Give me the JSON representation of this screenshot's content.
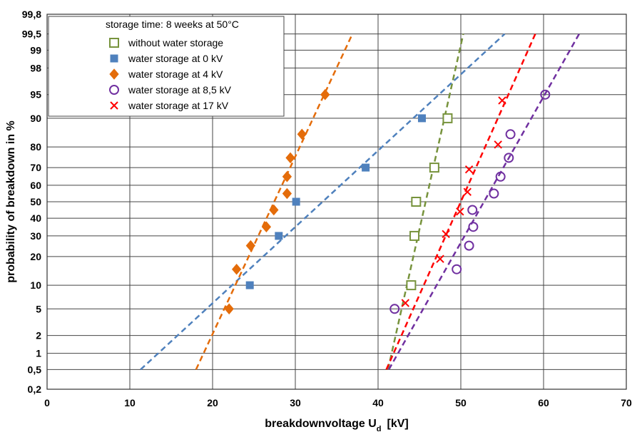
{
  "chart_data": {
    "type": "scatter",
    "title": "",
    "legend_title": "storage time:  8 weeks at 50°C",
    "legend_position": "top-left",
    "grid": true,
    "xlabel": {
      "main": "breakdownvoltage U",
      "sub": "d",
      "unit": "[kV]"
    },
    "ylabel": "probability of breakdown in %",
    "xlim": [
      0,
      70
    ],
    "ylim": [
      0.2,
      99.8
    ],
    "y_scale": "probability",
    "x_ticks": [
      "0",
      "10",
      "20",
      "30",
      "40",
      "50",
      "60",
      "70"
    ],
    "y_ticks": [
      {
        "label": "0,2",
        "value": 0.2
      },
      {
        "label": "0,5",
        "value": 0.5
      },
      {
        "label": "1",
        "value": 1
      },
      {
        "label": "2",
        "value": 2
      },
      {
        "label": "5",
        "value": 5
      },
      {
        "label": "10",
        "value": 10
      },
      {
        "label": "20",
        "value": 20
      },
      {
        "label": "30",
        "value": 30
      },
      {
        "label": "40",
        "value": 40
      },
      {
        "label": "50",
        "value": 50
      },
      {
        "label": "60",
        "value": 60
      },
      {
        "label": "70",
        "value": 70
      },
      {
        "label": "80",
        "value": 80
      },
      {
        "label": "90",
        "value": 90
      },
      {
        "label": "95",
        "value": 95
      },
      {
        "label": "98",
        "value": 98
      },
      {
        "label": "99",
        "value": 99
      },
      {
        "label": "99,5",
        "value": 99.5
      },
      {
        "label": "99,8",
        "value": 99.8
      }
    ],
    "series": [
      {
        "name": "without water storage",
        "marker": "open-square",
        "color": "#77933c",
        "points": [
          [
            44.0,
            10
          ],
          [
            44.4,
            30
          ],
          [
            44.6,
            50
          ],
          [
            46.8,
            70
          ],
          [
            48.4,
            90
          ]
        ],
        "fit_line": [
          [
            41.2,
            0.5
          ],
          [
            50.3,
            99.5
          ]
        ]
      },
      {
        "name": "water storage at 0 kV",
        "marker": "filled-square",
        "color": "#4f81bd",
        "points": [
          [
            24.5,
            10
          ],
          [
            28.0,
            30
          ],
          [
            30.1,
            50
          ],
          [
            38.5,
            70
          ],
          [
            45.3,
            90
          ]
        ],
        "fit_line": [
          [
            11.3,
            0.5
          ],
          [
            55.3,
            99.5
          ]
        ]
      },
      {
        "name": "water storage at 4 kV",
        "marker": "filled-diamond",
        "color": "#e46c0a",
        "points": [
          [
            22.0,
            5
          ],
          [
            22.9,
            15
          ],
          [
            24.6,
            25
          ],
          [
            26.5,
            35
          ],
          [
            27.4,
            45
          ],
          [
            29.0,
            55
          ],
          [
            29.0,
            65
          ],
          [
            29.4,
            75
          ],
          [
            30.8,
            85
          ],
          [
            33.6,
            95
          ]
        ],
        "fit_line": [
          [
            18.0,
            0.5
          ],
          [
            36.9,
            99.5
          ]
        ]
      },
      {
        "name": "water storage at 8,5 kV",
        "marker": "open-circle",
        "color": "#7030a0",
        "points": [
          [
            42.0,
            5
          ],
          [
            49.5,
            15
          ],
          [
            51.0,
            25
          ],
          [
            51.5,
            35
          ],
          [
            51.4,
            45
          ],
          [
            54.0,
            55
          ],
          [
            54.8,
            65
          ],
          [
            55.8,
            75
          ],
          [
            56.0,
            85
          ],
          [
            60.2,
            95
          ]
        ],
        "fit_line": [
          [
            41.3,
            0.5
          ],
          [
            64.3,
            99.5
          ]
        ]
      },
      {
        "name": "water storage at 17 kV",
        "marker": "cross",
        "color": "#ff0000",
        "points": [
          [
            43.3,
            6
          ],
          [
            47.5,
            19
          ],
          [
            48.2,
            31
          ],
          [
            49.9,
            44
          ],
          [
            50.8,
            56
          ],
          [
            51.0,
            69
          ],
          [
            54.5,
            81
          ],
          [
            55.0,
            94
          ]
        ],
        "fit_line": [
          [
            41.0,
            0.5
          ],
          [
            59.0,
            99.5
          ]
        ]
      }
    ]
  }
}
